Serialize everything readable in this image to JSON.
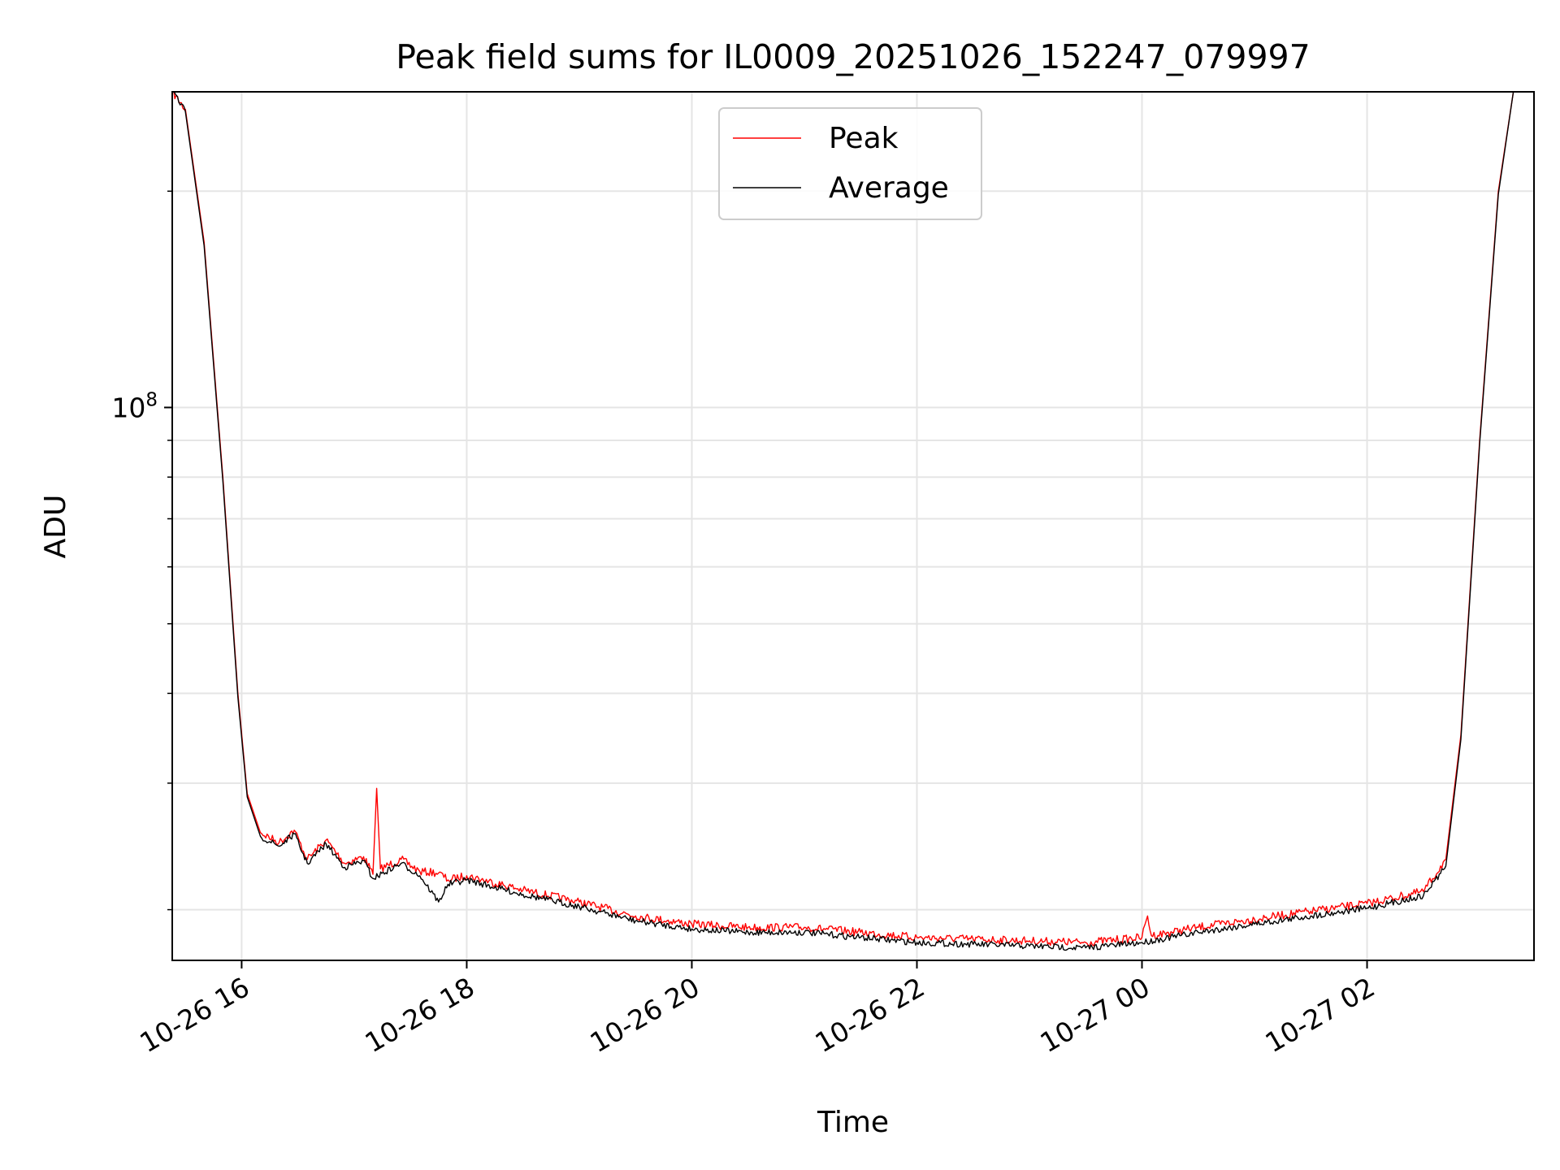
{
  "chart_data": {
    "type": "line",
    "title": "Peak field sums for IL0009_20251026_152247_079997",
    "xlabel": "Time",
    "ylabel": "ADU",
    "x_axis_type": "datetime",
    "xlim": [
      "2025-10-26 15:23",
      "2025-10-27 03:29"
    ],
    "x_ticks": [
      "2025-10-26 16:00",
      "2025-10-26 18:00",
      "2025-10-26 20:00",
      "2025-10-26 22:00",
      "2025-10-27 00:00",
      "2025-10-27 02:00"
    ],
    "x_tick_labels": [
      "10-26 16",
      "10-26 18",
      "10-26 20",
      "10-26 22",
      "10-27 00",
      "10-27 02"
    ],
    "yscale": "log",
    "ylim": [
      17000000,
      275000000
    ],
    "y_ticks": [
      100000000
    ],
    "y_tick_labels": [
      {
        "base": "10",
        "exp": "8"
      }
    ],
    "y_minor_ticks": [
      20000000,
      30000000,
      40000000,
      50000000,
      60000000,
      70000000,
      80000000,
      90000000,
      200000000
    ],
    "grid": true,
    "legend_position": "upper center",
    "colors": {
      "peak": "#ff0000",
      "average": "#000000",
      "grid": "#e5e5e5"
    },
    "series": [
      {
        "name": "Peak",
        "color": "#ff0000",
        "points": [
          [
            "2025-10-26 15:23",
            275000000
          ],
          [
            "2025-10-26 15:30",
            260000000
          ],
          [
            "2025-10-26 15:40",
            170000000
          ],
          [
            "2025-10-26 15:50",
            80000000
          ],
          [
            "2025-10-26 15:58",
            40000000
          ],
          [
            "2025-10-26 16:03",
            29000000
          ],
          [
            "2025-10-26 16:10",
            25600000
          ],
          [
            "2025-10-26 16:20",
            24800000
          ],
          [
            "2025-10-26 16:28",
            25800000
          ],
          [
            "2025-10-26 16:35",
            23500000
          ],
          [
            "2025-10-26 16:45",
            25000000
          ],
          [
            "2025-10-26 16:55",
            23200000
          ],
          [
            "2025-10-26 17:05",
            23700000
          ],
          [
            "2025-10-26 17:10",
            22400000
          ],
          [
            "2025-10-26 17:12",
            29500000
          ],
          [
            "2025-10-26 17:14",
            22800000
          ],
          [
            "2025-10-26 17:25",
            23500000
          ],
          [
            "2025-10-26 17:35",
            22600000
          ],
          [
            "2025-10-26 17:45",
            22500000
          ],
          [
            "2025-10-26 17:50",
            22000000
          ],
          [
            "2025-10-26 18:00",
            22300000
          ],
          [
            "2025-10-26 18:30",
            21300000
          ],
          [
            "2025-10-26 19:00",
            20500000
          ],
          [
            "2025-10-26 19:30",
            19600000
          ],
          [
            "2025-10-26 20:00",
            19100000
          ],
          [
            "2025-10-26 20:30",
            18900000
          ],
          [
            "2025-10-26 21:00",
            18900000
          ],
          [
            "2025-10-26 21:30",
            18600000
          ],
          [
            "2025-10-26 22:00",
            18300000
          ],
          [
            "2025-10-26 22:30",
            18200000
          ],
          [
            "2025-10-26 23:00",
            18100000
          ],
          [
            "2025-10-26 23:30",
            18000000
          ],
          [
            "2025-10-27 00:00",
            18300000
          ],
          [
            "2025-10-27 00:03",
            19600000
          ],
          [
            "2025-10-27 00:05",
            18400000
          ],
          [
            "2025-10-27 00:30",
            18900000
          ],
          [
            "2025-10-27 01:00",
            19400000
          ],
          [
            "2025-10-27 01:30",
            19900000
          ],
          [
            "2025-10-27 02:00",
            20400000
          ],
          [
            "2025-10-27 02:30",
            21200000
          ],
          [
            "2025-10-27 02:42",
            23500000
          ],
          [
            "2025-10-27 02:50",
            35000000
          ],
          [
            "2025-10-27 03:00",
            90000000
          ],
          [
            "2025-10-27 03:10",
            200000000
          ],
          [
            "2025-10-27 03:18",
            275000000
          ]
        ]
      },
      {
        "name": "Average",
        "color": "#000000",
        "points": [
          [
            "2025-10-26 15:23",
            275000000
          ],
          [
            "2025-10-26 15:30",
            258000000
          ],
          [
            "2025-10-26 15:40",
            168000000
          ],
          [
            "2025-10-26 15:50",
            79000000
          ],
          [
            "2025-10-26 15:58",
            39500000
          ],
          [
            "2025-10-26 16:03",
            28700000
          ],
          [
            "2025-10-26 16:10",
            25300000
          ],
          [
            "2025-10-26 16:20",
            24500000
          ],
          [
            "2025-10-26 16:28",
            25500000
          ],
          [
            "2025-10-26 16:35",
            23200000
          ],
          [
            "2025-10-26 16:45",
            24700000
          ],
          [
            "2025-10-26 16:55",
            22900000
          ],
          [
            "2025-10-26 17:05",
            23400000
          ],
          [
            "2025-10-26 17:10",
            22100000
          ],
          [
            "2025-10-26 17:25",
            23200000
          ],
          [
            "2025-10-26 17:35",
            22300000
          ],
          [
            "2025-10-26 17:45",
            20500000
          ],
          [
            "2025-10-26 17:50",
            21700000
          ],
          [
            "2025-10-26 18:00",
            22000000
          ],
          [
            "2025-10-26 18:30",
            21000000
          ],
          [
            "2025-10-26 19:00",
            20200000
          ],
          [
            "2025-10-26 19:30",
            19300000
          ],
          [
            "2025-10-26 20:00",
            18800000
          ],
          [
            "2025-10-26 20:30",
            18600000
          ],
          [
            "2025-10-26 21:00",
            18600000
          ],
          [
            "2025-10-26 21:30",
            18300000
          ],
          [
            "2025-10-26 22:00",
            18000000
          ],
          [
            "2025-10-26 22:30",
            17900000
          ],
          [
            "2025-10-26 23:00",
            17800000
          ],
          [
            "2025-10-26 23:30",
            17700000
          ],
          [
            "2025-10-27 00:00",
            18000000
          ],
          [
            "2025-10-27 00:30",
            18600000
          ],
          [
            "2025-10-27 01:00",
            19100000
          ],
          [
            "2025-10-27 01:30",
            19600000
          ],
          [
            "2025-10-27 02:00",
            20100000
          ],
          [
            "2025-10-27 02:30",
            20900000
          ],
          [
            "2025-10-27 02:42",
            23000000
          ],
          [
            "2025-10-27 02:50",
            34500000
          ],
          [
            "2025-10-27 03:00",
            89000000
          ],
          [
            "2025-10-27 03:10",
            198000000
          ],
          [
            "2025-10-27 03:18",
            275000000
          ]
        ]
      }
    ]
  }
}
